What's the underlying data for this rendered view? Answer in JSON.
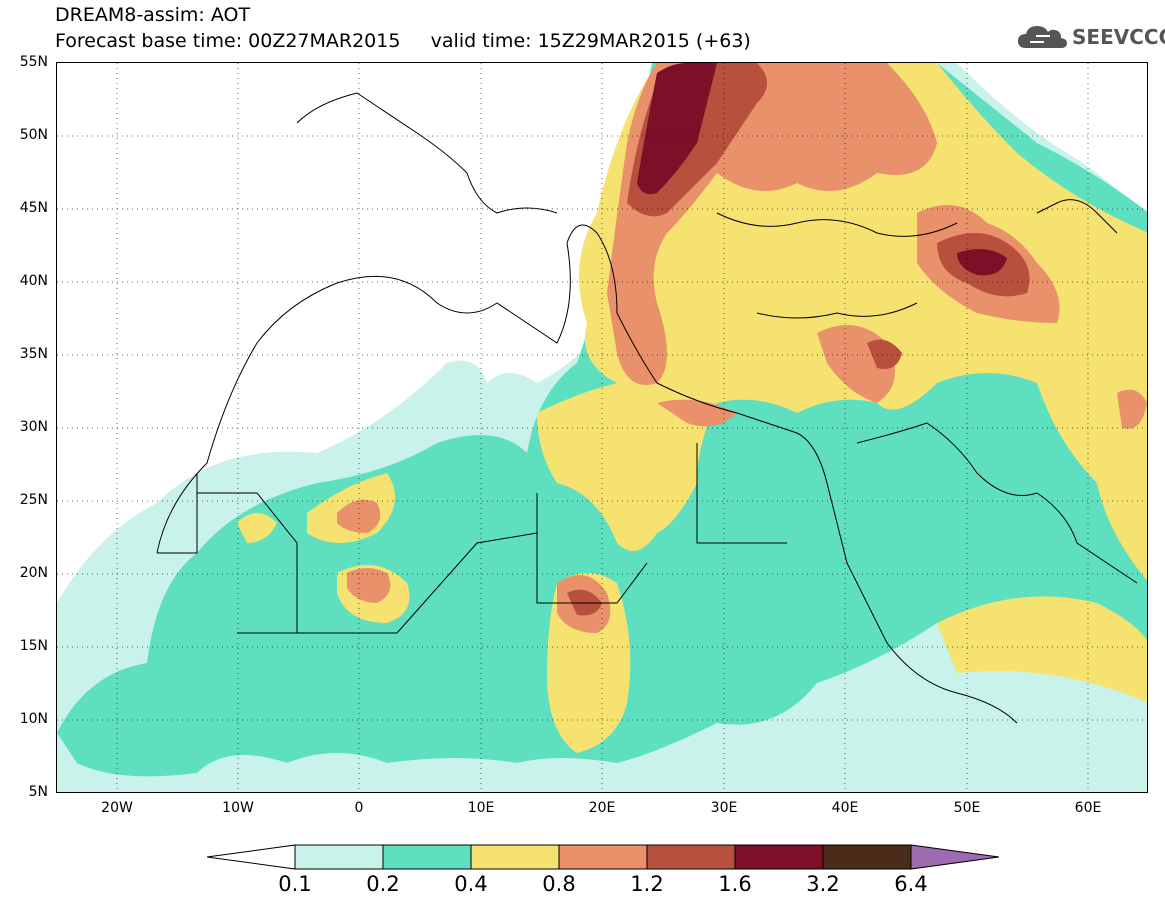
{
  "header": {
    "title": "DREAM8-assim: AOT",
    "base_time_label": "Forecast base time: 00Z27MAR2015",
    "valid_time_label": "valid time: 15Z29MAR2015 (+63)",
    "logo_text": "SEEVCCC"
  },
  "axes": {
    "lat_labels": [
      "55N",
      "50N",
      "45N",
      "40N",
      "35N",
      "30N",
      "25N",
      "20N",
      "15N",
      "10N",
      "5N"
    ],
    "lon_labels": [
      "20W",
      "10W",
      "0",
      "10E",
      "20E",
      "30E",
      "40E",
      "50E",
      "60E"
    ]
  },
  "colorbar": {
    "levels": [
      "0.1",
      "0.2",
      "0.4",
      "0.8",
      "1.2",
      "1.6",
      "3.2",
      "6.4"
    ],
    "colors": [
      "#c9f2ea",
      "#5ee0c0",
      "#f5e270",
      "#e8916a",
      "#b8503e",
      "#7b1028",
      "#4a2a18",
      "#9c6bb0"
    ]
  }
}
